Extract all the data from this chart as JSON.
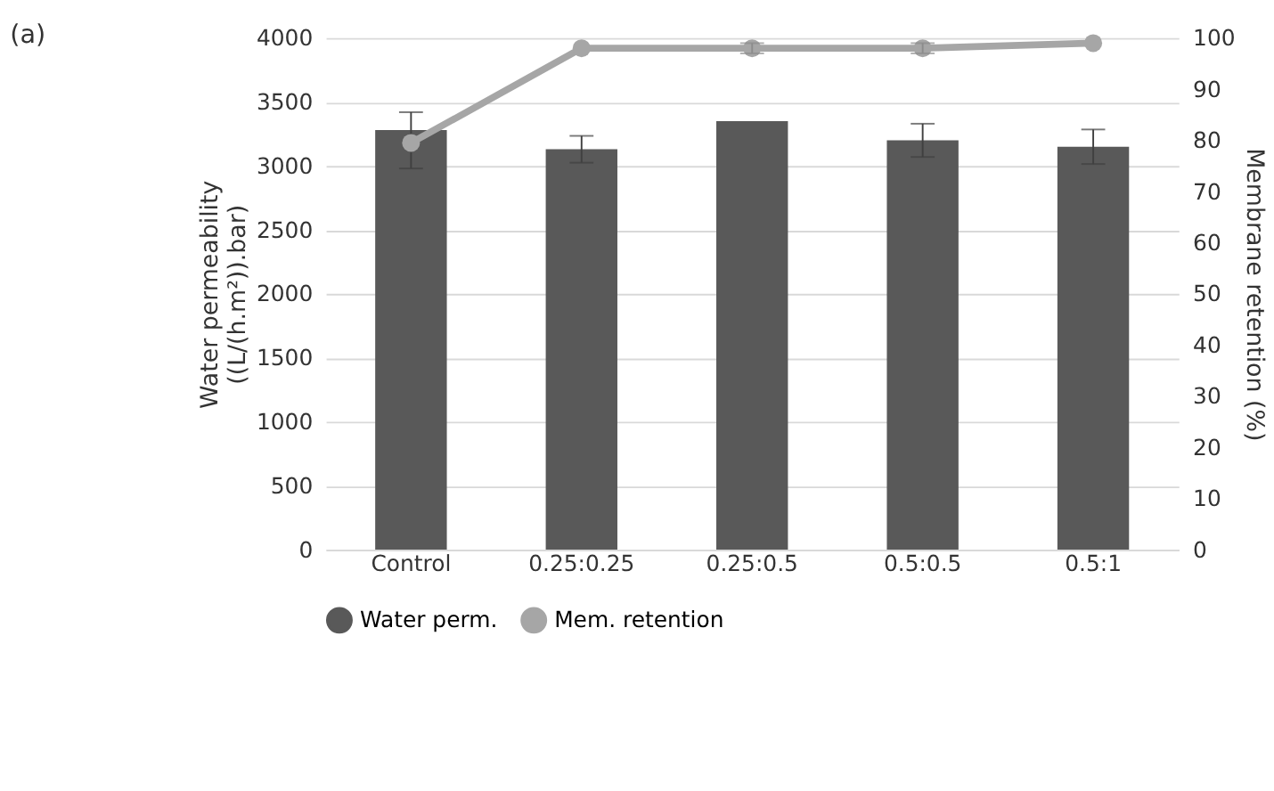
{
  "chart_data": {
    "type": "bar",
    "title": "(a)",
    "categories": [
      "Control",
      "0.25:0.25",
      "0.25:0.5",
      "0.5:0.5",
      "0.5:1"
    ],
    "ylabel": "Water permeability ((L/(h.m²)).bar)",
    "y2label": "Membrane retention (%)",
    "series": [
      {
        "name": "Water perm.",
        "color": "#595959",
        "values": [
          3280,
          3130,
          3350,
          3200,
          3150
        ],
        "errors": [
          [
            2980,
            3420
          ],
          105,
          null,
          130,
          135
        ]
      },
      {
        "name": "Mem. retention",
        "type": "line",
        "axis": "y2",
        "color": "#a6a6a6",
        "marker": "circle",
        "values": [
          79.5,
          98,
          98,
          98,
          99
        ],
        "errors": [
          null,
          null,
          1,
          1,
          null
        ]
      }
    ],
    "ylim": [
      0,
      4000
    ],
    "yticks": [
      0,
      500,
      1000,
      1500,
      2000,
      2500,
      3000,
      3500,
      4000
    ],
    "y2lim": [
      0,
      100
    ],
    "y2ticks": [
      0,
      10,
      20,
      30,
      40,
      50,
      60,
      70,
      80,
      90,
      100
    ],
    "grid": "y",
    "legend": "bottom"
  }
}
